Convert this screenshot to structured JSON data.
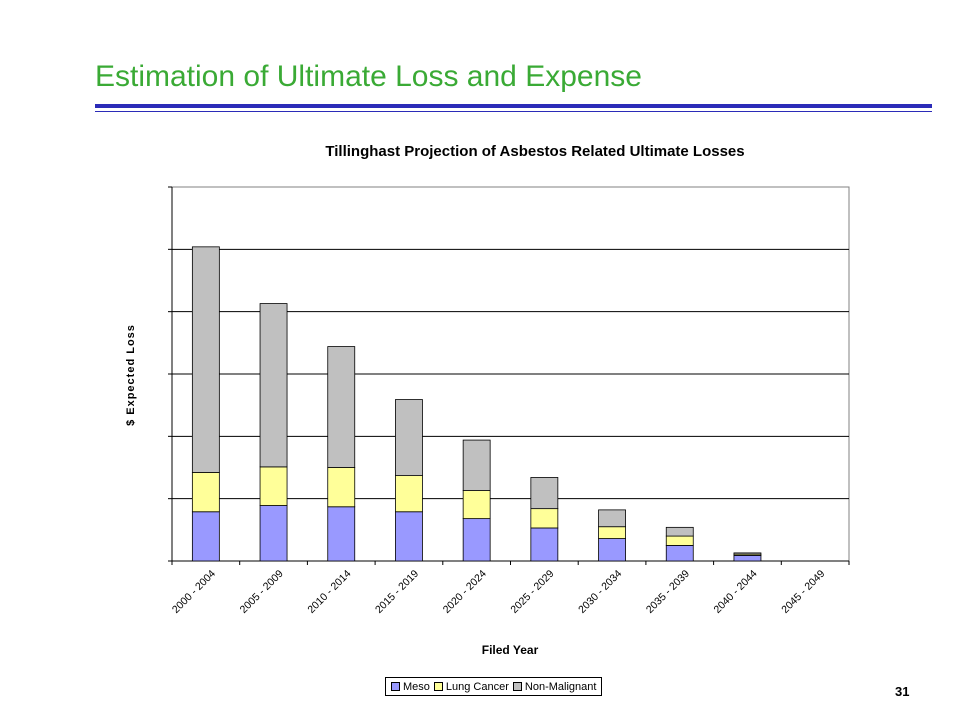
{
  "slide": {
    "title": "Estimation of Ultimate Loss and Expense",
    "page_number": "31"
  },
  "colors": {
    "title": "#3aaa35",
    "rule": "#2b2bb8",
    "meso": "#9999ff",
    "lung_cancer": "#ffff99",
    "non_malignant": "#c0c0c0"
  },
  "chart_data": {
    "type": "bar",
    "stacked": true,
    "title": "Tillinghast Projection of Asbestos Related Ultimate Losses",
    "xlabel": "Filed Year",
    "ylabel": "$ Expected Loss",
    "y_tick_labels_shown": false,
    "grid": true,
    "legend_position": "bottom",
    "ylim": [
      0,
      6
    ],
    "categories": [
      "2000 - 2004",
      "2005 - 2009",
      "2010 - 2014",
      "2015 - 2019",
      "2020 - 2024",
      "2025 - 2029",
      "2030 - 2034",
      "2035 - 2039",
      "2040 - 2044",
      "2045 - 2049"
    ],
    "series": [
      {
        "name": "Meso",
        "values": [
          0.79,
          0.89,
          0.87,
          0.79,
          0.68,
          0.53,
          0.36,
          0.25,
          0.09,
          0.0
        ]
      },
      {
        "name": "Lung Cancer",
        "values": [
          0.63,
          0.62,
          0.63,
          0.58,
          0.45,
          0.31,
          0.19,
          0.15,
          0.02,
          0.0
        ]
      },
      {
        "name": "Non-Malignant",
        "values": [
          3.62,
          2.62,
          1.94,
          1.22,
          0.81,
          0.5,
          0.27,
          0.14,
          0.02,
          0.0
        ]
      }
    ]
  }
}
